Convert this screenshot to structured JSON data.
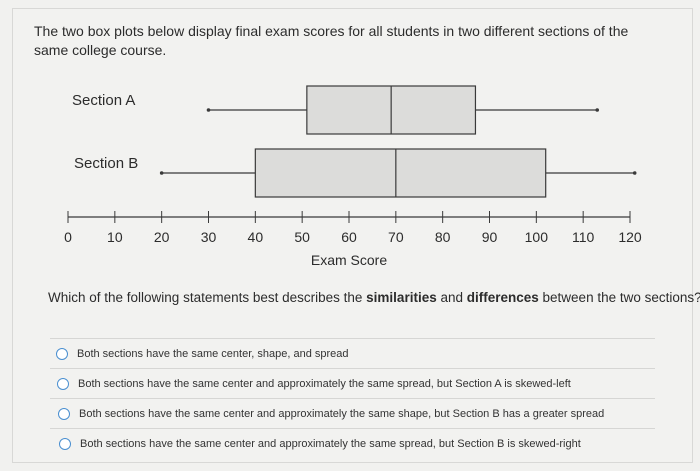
{
  "intro_text": "The two box plots below display final exam scores for all students in two different sections of the same college course.",
  "question": {
    "prefix": "Which of the following statements best describes the ",
    "bold1": "similarities",
    "mid": " and ",
    "bold2": "differences",
    "suffix": " between the two sections?"
  },
  "options": [
    "Both sections have the same center, shape, and spread",
    "Both sections have the same center and approximately the same spread, but Section A is skewed-left",
    "Both sections have the same center and approximately the same shape, but Section B has a greater spread",
    "Both sections have the same center and approximately the same spread, but Section B is skewed-right"
  ],
  "colors": {
    "box_fill": "#dcdcda",
    "line": "#3a3a3a",
    "radio": "#4a8fd0"
  },
  "chart_data": {
    "type": "boxplot",
    "xlabel": "Exam Score",
    "xlim": [
      0,
      120
    ],
    "ticks": [
      0,
      10,
      20,
      30,
      40,
      50,
      60,
      70,
      80,
      90,
      100,
      110,
      120
    ],
    "series": [
      {
        "name": "Section A",
        "min": 30,
        "q1": 51,
        "median": 69,
        "q3": 87,
        "max": 113
      },
      {
        "name": "Section B",
        "min": 20,
        "q1": 40,
        "median": 70,
        "q3": 102,
        "max": 121
      }
    ]
  }
}
